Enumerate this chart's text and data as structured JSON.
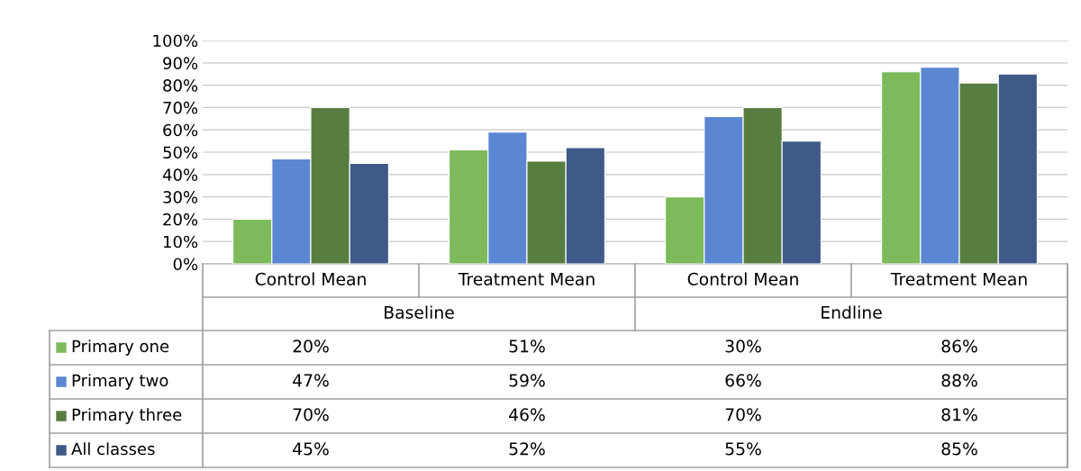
{
  "chart_data": {
    "type": "bar",
    "categories": [
      "Control Mean",
      "Treatment Mean",
      "Control Mean",
      "Treatment Mean"
    ],
    "annotations": [
      "Baseline",
      "Endline"
    ],
    "series": [
      {
        "name": "Primary one",
        "color": "#7cba5c",
        "values": [
          20,
          51,
          30,
          86
        ],
        "value_labels": [
          "20%",
          "51%",
          "30%",
          "86%"
        ]
      },
      {
        "name": "Primary two",
        "color": "#5b87d2",
        "values": [
          47,
          59,
          66,
          88
        ],
        "value_labels": [
          "47%",
          "59%",
          "66%",
          "88%"
        ]
      },
      {
        "name": "Primary three",
        "color": "#587d41",
        "values": [
          70,
          46,
          70,
          81
        ],
        "value_labels": [
          "70%",
          "46%",
          "70%",
          "81%"
        ]
      },
      {
        "name": "All classes",
        "color": "#3f5a89",
        "values": [
          45,
          52,
          55,
          85
        ],
        "value_labels": [
          "45%",
          "52%",
          "55%",
          "85%"
        ]
      }
    ],
    "ylim": [
      0,
      100
    ],
    "yticks": [
      {
        "value": 0,
        "label": "0%"
      },
      {
        "value": 10,
        "label": "10%"
      },
      {
        "value": 20,
        "label": "20%"
      },
      {
        "value": 30,
        "label": "30%"
      },
      {
        "value": 40,
        "label": "40%"
      },
      {
        "value": 50,
        "label": "50%"
      },
      {
        "value": 60,
        "label": "60%"
      },
      {
        "value": 70,
        "label": "70%"
      },
      {
        "value": 80,
        "label": "80%"
      },
      {
        "value": 90,
        "label": "90%"
      },
      {
        "value": 100,
        "label": "100%"
      }
    ],
    "grid": "y",
    "legend": "bottom"
  }
}
